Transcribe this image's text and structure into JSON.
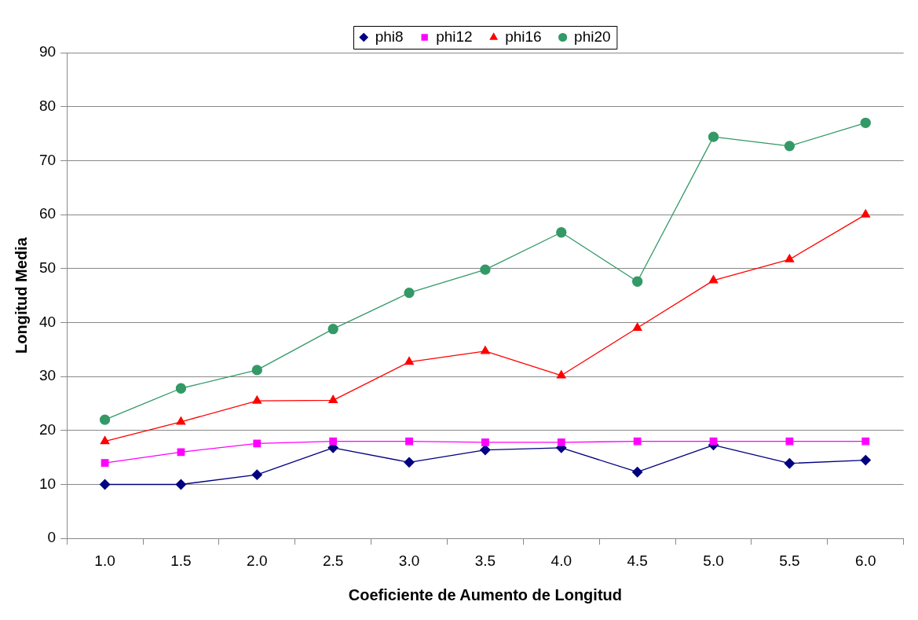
{
  "chart_data": {
    "type": "line",
    "xlabel": "Coeficiente de Aumento de Longitud",
    "ylabel": "Longitud Media",
    "categories": [
      "1.0",
      "1.5",
      "2.0",
      "2.5",
      "3.0",
      "3.5",
      "4.0",
      "4.5",
      "5.0",
      "5.5",
      "6.0"
    ],
    "series": [
      {
        "name": "phi8",
        "color": "#000080",
        "marker": "diamond",
        "values": [
          10,
          10,
          11.8,
          16.8,
          14.1,
          16.4,
          16.8,
          12.3,
          17.3,
          13.9,
          14.5
        ]
      },
      {
        "name": "phi12",
        "color": "#ff00ff",
        "marker": "square",
        "values": [
          14,
          16,
          17.6,
          18,
          18,
          17.8,
          17.8,
          18,
          18,
          18,
          18
        ]
      },
      {
        "name": "phi16",
        "color": "#ff0000",
        "marker": "triangle",
        "values": [
          18,
          21.6,
          25.5,
          25.6,
          32.7,
          34.7,
          30.2,
          39,
          47.8,
          51.7,
          60
        ]
      },
      {
        "name": "phi20",
        "color": "#339966",
        "marker": "circle",
        "values": [
          22,
          27.8,
          31.2,
          38.8,
          45.5,
          49.8,
          56.7,
          47.6,
          74.4,
          72.7,
          77
        ]
      }
    ],
    "ylim": [
      0,
      90
    ],
    "yticks": [
      0,
      10,
      20,
      30,
      40,
      50,
      60,
      70,
      80,
      90
    ],
    "grid": "y",
    "legend": "top",
    "line_style": "solid"
  }
}
